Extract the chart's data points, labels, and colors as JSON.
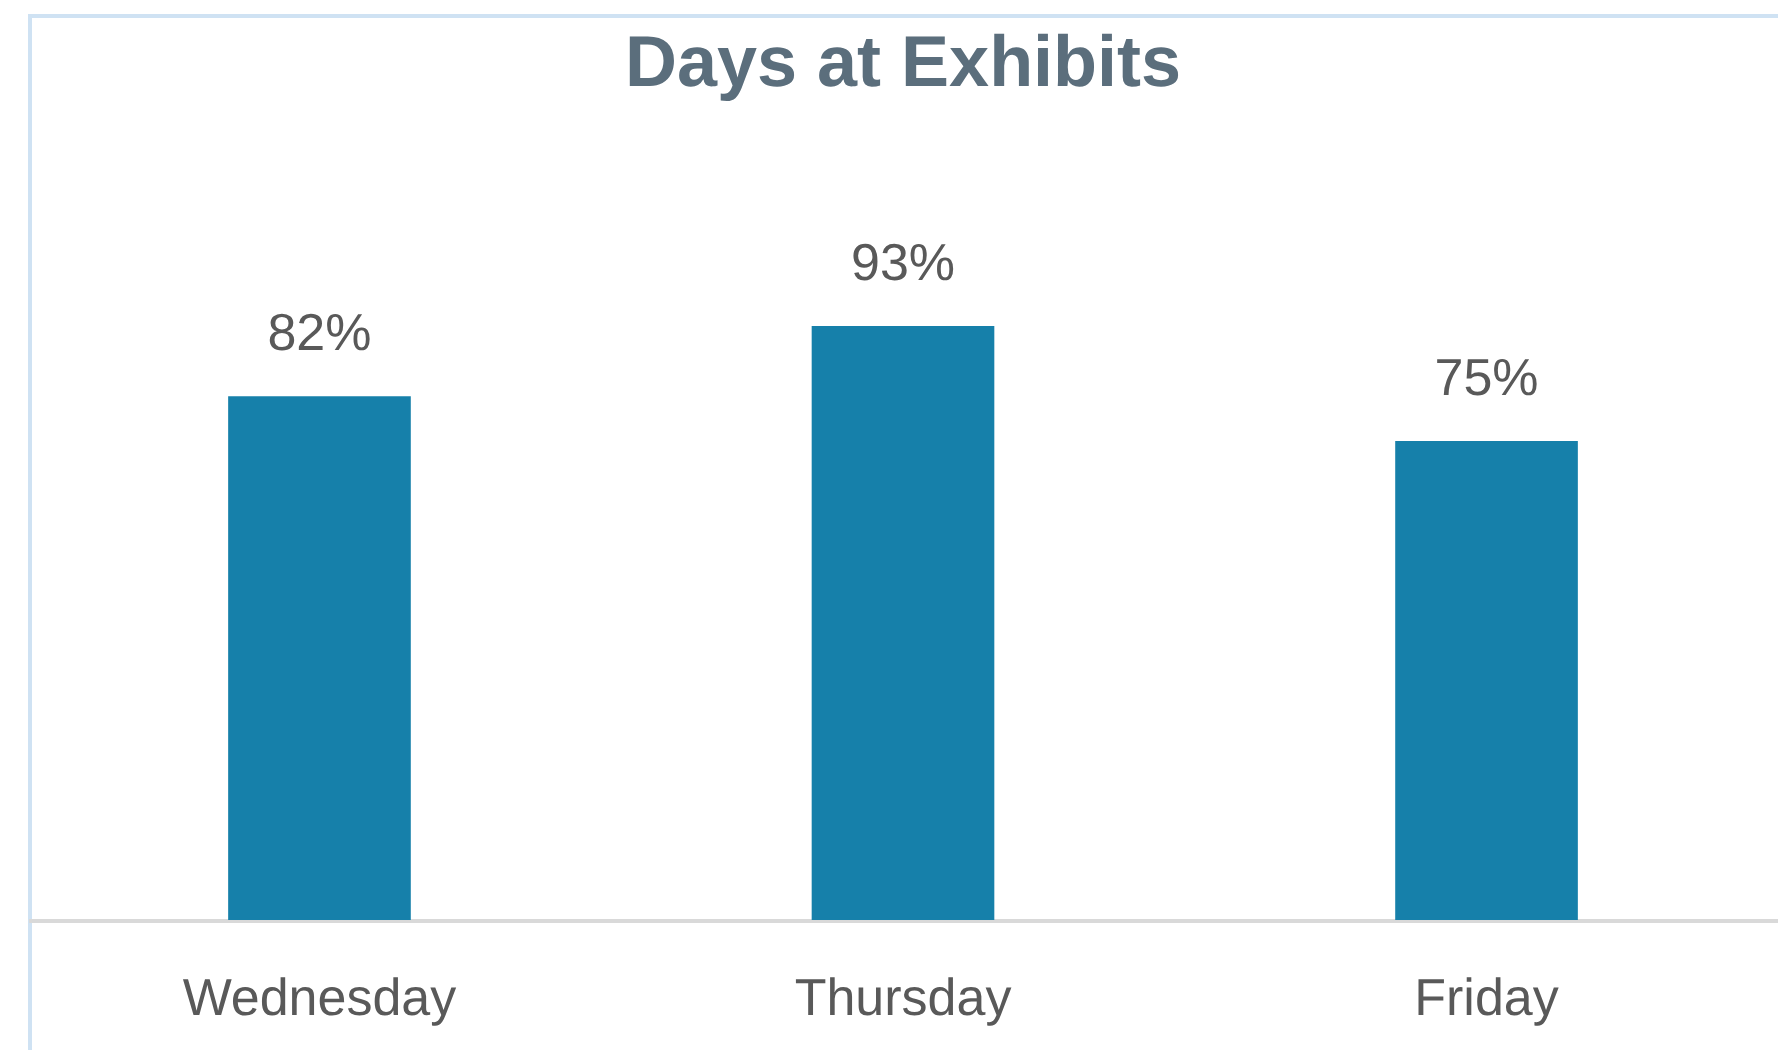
{
  "chart_data": {
    "type": "bar",
    "title": "Days at Exhibits",
    "categories": [
      "Wednesday",
      "Thursday",
      "Friday"
    ],
    "values": [
      82,
      93,
      75
    ],
    "value_labels": [
      "82%",
      "93%",
      "75%"
    ],
    "color": "#1680aa"
  }
}
